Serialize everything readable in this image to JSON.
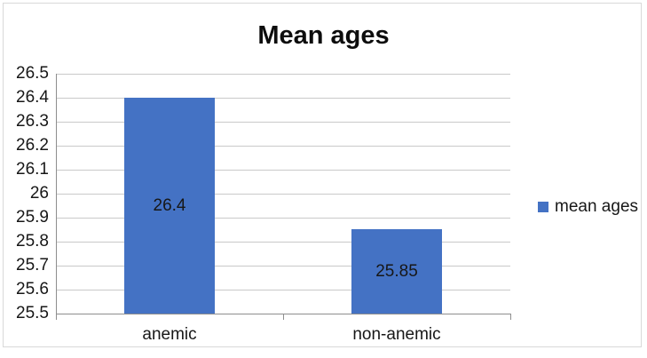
{
  "chart_data": {
    "type": "bar",
    "title": "Mean ages",
    "categories": [
      "anemic",
      "non-anemic"
    ],
    "series": [
      {
        "name": "mean ages",
        "values": [
          26.4,
          25.85
        ]
      }
    ],
    "data_labels": [
      "26.4",
      "25.85"
    ],
    "data_label_position": "center",
    "ylim": [
      25.5,
      26.5
    ],
    "ytick_labels": [
      "26.5",
      "26.4",
      "26.3",
      "26.2",
      "26.1",
      "26",
      "25.9",
      "25.8",
      "25.7",
      "25.6",
      "25.5"
    ],
    "grid": true,
    "legend": {
      "label": "mean ages",
      "position": "right"
    },
    "colors": {
      "bar": "#4472C4",
      "gridline": "#C9C9C9",
      "axis": "#8E8E8E",
      "text": "#171717",
      "title": "#0D0D0D",
      "frame_border": "#D9D9D9",
      "background": "#FFFFFF"
    }
  }
}
